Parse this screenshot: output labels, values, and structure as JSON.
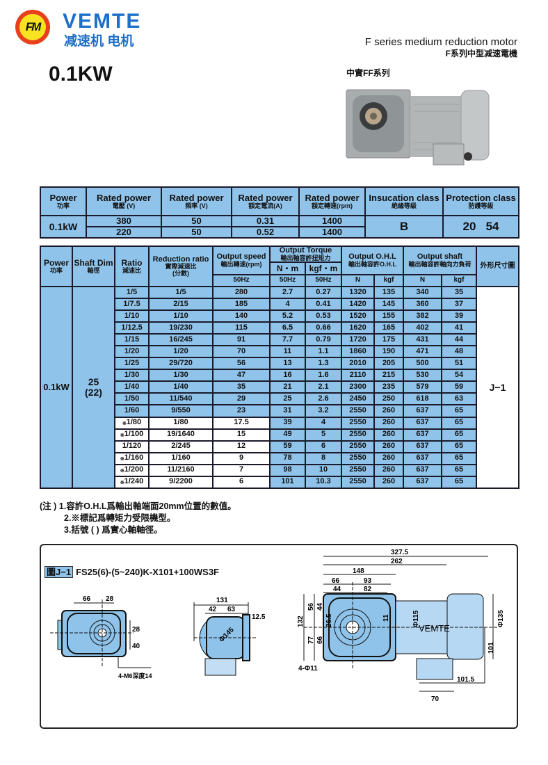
{
  "header": {
    "logo_text": "FM",
    "brand": "VEMTE",
    "brand_cn": "减速机 电机",
    "series_en": "F series medium reduction motor",
    "series_cn": "F系列中型减速電機",
    "power": "0.1KW",
    "photo_label": "中實FF系列"
  },
  "colors": {
    "table_blue": "#8fc3ea",
    "brand_blue": "#1e6fc8",
    "logo_red": "#e8401c",
    "logo_yellow": "#f7e321"
  },
  "rated": {
    "headers": [
      [
        "Power",
        "功率"
      ],
      [
        "Rated power",
        "電壓 (V)"
      ],
      [
        "Rated power",
        "頻率 (V)"
      ],
      [
        "Rated power",
        "額定電流(A)"
      ],
      [
        "Rated power",
        "額定轉速(rpm)"
      ],
      [
        "Insucation class",
        "絶緣等級"
      ],
      [
        "Protection class",
        "防護等級"
      ]
    ],
    "power": "0.1kW",
    "rows": [
      [
        "380",
        "50",
        "0.31",
        "1400"
      ],
      [
        "220",
        "50",
        "0.52",
        "1400"
      ]
    ],
    "insulation": "B",
    "protection": "20   54"
  },
  "spec": {
    "headers": {
      "power": [
        "Power",
        "功率"
      ],
      "shaft": [
        "Shaft Dim",
        "軸徑"
      ],
      "ratio": [
        "Ratio",
        "減速比"
      ],
      "reduction": [
        "Reduction ratio",
        "實際減速比",
        "(分數)"
      ],
      "speed": [
        "Output speed",
        "輸出轉速(rpm)"
      ],
      "torque": [
        "Output Torque",
        "輸出軸容許扭矩力"
      ],
      "nm": "N・m",
      "kgfm": "kgf・m",
      "ohl": [
        "Output O.H.L",
        "輸出軸容許O.H.L"
      ],
      "shaft_load": [
        "Output shaft",
        "輸出軸容許軸向力負荷"
      ],
      "outline": "外形尺寸圖",
      "hz": "50Hz",
      "n": "N",
      "kgf": "kgf"
    },
    "power": "0.1kW",
    "shaft_dim": "25",
    "shaft_dim_solid": "(22)",
    "outline": "J−1",
    "limited_mark": "※",
    "rows": [
      [
        "1/5",
        "1/5",
        "280",
        "2.7",
        "0.27",
        "1320",
        "135",
        "340",
        "35",
        false
      ],
      [
        "1/7.5",
        "2/15",
        "185",
        "4",
        "0.41",
        "1420",
        "145",
        "360",
        "37",
        false
      ],
      [
        "1/10",
        "1/10",
        "140",
        "5.2",
        "0.53",
        "1520",
        "155",
        "382",
        "39",
        false
      ],
      [
        "1/12.5",
        "19/230",
        "115",
        "6.5",
        "0.66",
        "1620",
        "165",
        "402",
        "41",
        false
      ],
      [
        "1/15",
        "16/245",
        "91",
        "7.7",
        "0.79",
        "1720",
        "175",
        "431",
        "44",
        false
      ],
      [
        "1/20",
        "1/20",
        "70",
        "11",
        "1.1",
        "1860",
        "190",
        "471",
        "48",
        false
      ],
      [
        "1/25",
        "29/720",
        "56",
        "13",
        "1.3",
        "2010",
        "205",
        "500",
        "51",
        false
      ],
      [
        "1/30",
        "1/30",
        "47",
        "16",
        "1.6",
        "2110",
        "215",
        "530",
        "54",
        false
      ],
      [
        "1/40",
        "1/40",
        "35",
        "21",
        "2.1",
        "2300",
        "235",
        "579",
        "59",
        false
      ],
      [
        "1/50",
        "11/540",
        "29",
        "25",
        "2.6",
        "2450",
        "250",
        "618",
        "63",
        false
      ],
      [
        "1/60",
        "9/550",
        "23",
        "31",
        "3.2",
        "2550",
        "260",
        "637",
        "65",
        false
      ],
      [
        "1/80",
        "1/80",
        "17.5",
        "39",
        "4",
        "2550",
        "260",
        "637",
        "65",
        true
      ],
      [
        "1/100",
        "19/1640",
        "15",
        "49",
        "5",
        "2550",
        "260",
        "637",
        "65",
        true
      ],
      [
        "1/120",
        "2/245",
        "12",
        "59",
        "6",
        "2550",
        "260",
        "637",
        "65",
        false
      ],
      [
        "1/160",
        "1/160",
        "9",
        "78",
        "8",
        "2550",
        "260",
        "637",
        "65",
        true
      ],
      [
        "1/200",
        "11/2160",
        "7",
        "98",
        "10",
        "2550",
        "260",
        "637",
        "65",
        true
      ],
      [
        "1/240",
        "9/2200",
        "6",
        "101",
        "10.3",
        "2550",
        "260",
        "637",
        "65",
        true
      ]
    ]
  },
  "notes": [
    "(注 ) 1.容許O.H.L爲輸出軸端面20mm位置的數值。",
    "2.※標記爲轉矩力受限機型。",
    "3.括號 ( ) 爲實心軸軸徑。"
  ],
  "drawing": {
    "tag": "圖J−1",
    "model": "FS25(6)-(5~240)K-X101+100WS3F",
    "front": {
      "d1": "66",
      "d2": "28",
      "d3": "28",
      "d4": "40",
      "hole": "4-M6深度14"
    },
    "side": {
      "d1": "131",
      "d2": "42",
      "d3": "63",
      "d4": "12.5",
      "dia": "Φ145"
    },
    "top": {
      "d1": "327.5",
      "d2": "262",
      "d3": "148",
      "d4": "66",
      "d5": "93",
      "d6": "44",
      "d7": "82",
      "h1": "132",
      "h2": "56",
      "h3": "44",
      "h4": "77",
      "h5": "66",
      "h6": "26.5",
      "h7": "11",
      "dia1": "Φ115",
      "dia2": "Φ135",
      "h8": "101",
      "w1": "101.5",
      "w2": "70",
      "hole": "4-Φ11",
      "brand": "VEMTE"
    }
  }
}
